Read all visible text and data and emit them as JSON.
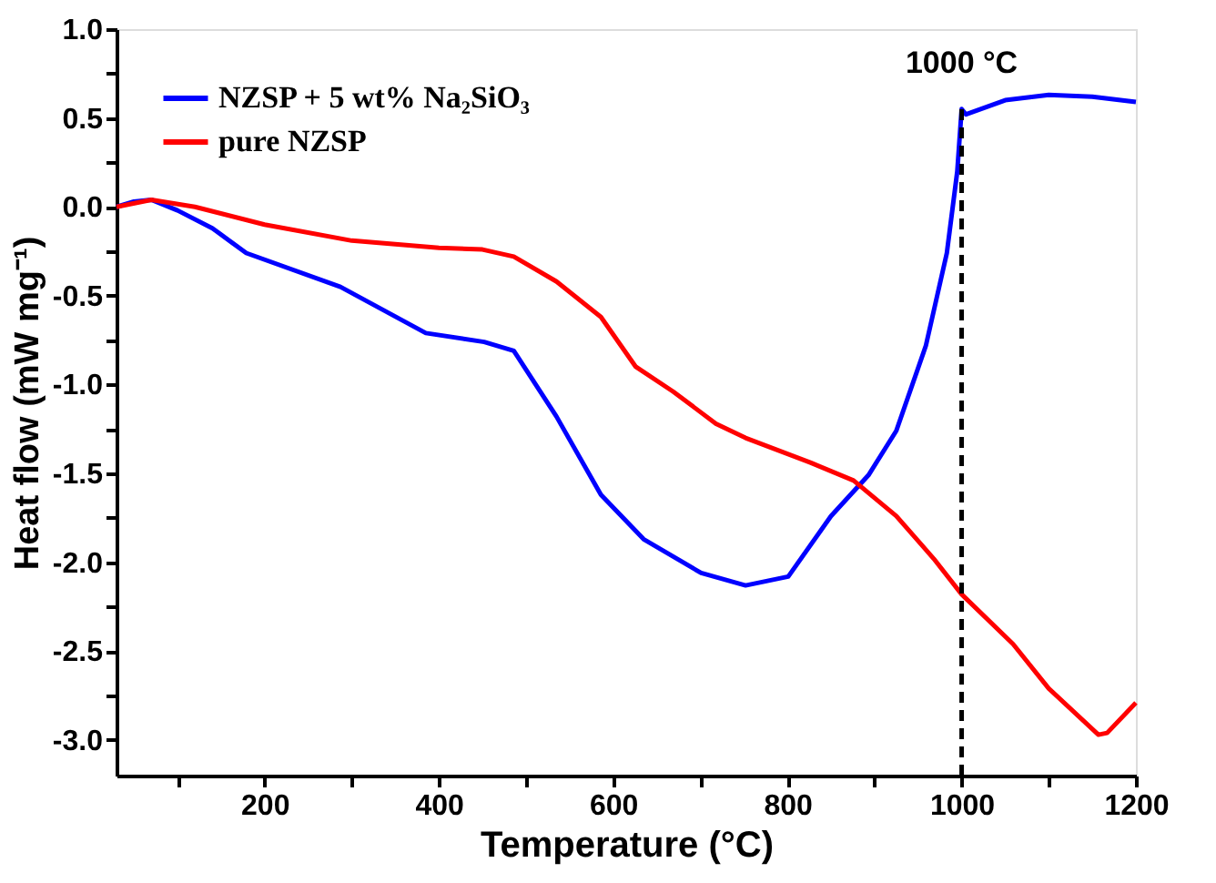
{
  "chart_data": {
    "type": "line",
    "xlabel": "Temperature (°C)",
    "ylabel": "Heat flow (mW mg⁻¹)",
    "xlim": [
      30,
      1200
    ],
    "ylim": [
      -3.2,
      1.0
    ],
    "xticks": [
      {
        "value": 100,
        "label": null
      },
      200,
      {
        "value": 300,
        "label": null
      },
      400,
      {
        "value": 500,
        "label": null
      },
      600,
      {
        "value": 700,
        "label": null
      },
      800,
      {
        "value": 900,
        "label": null
      },
      1000,
      {
        "value": 1100,
        "label": null
      },
      1200
    ],
    "yticks": [
      {
        "value": -3.0,
        "label": "-3.0"
      },
      {
        "value": -2.75,
        "label": null
      },
      {
        "value": -2.5,
        "label": "-2.5"
      },
      {
        "value": -2.25,
        "label": null
      },
      {
        "value": -2.0,
        "label": "-2.0"
      },
      {
        "value": -1.75,
        "label": null
      },
      {
        "value": -1.5,
        "label": "-1.5"
      },
      {
        "value": -1.25,
        "label": null
      },
      {
        "value": -1.0,
        "label": "-1.0"
      },
      {
        "value": -0.75,
        "label": null
      },
      {
        "value": -0.5,
        "label": "-0.5"
      },
      {
        "value": -0.25,
        "label": null
      },
      {
        "value": 0.0,
        "label": "0.0"
      },
      {
        "value": 0.25,
        "label": null
      },
      {
        "value": 0.5,
        "label": "0.5"
      },
      {
        "value": 0.75,
        "label": null
      },
      {
        "value": 1.0,
        "label": "1.0"
      }
    ],
    "grid": false,
    "legend": "top left",
    "line_style": "solid",
    "marker": "none",
    "ref_lines": [
      {
        "axis": "x",
        "value": 1000,
        "label": "1000 °C",
        "color": "#000000",
        "line_style": "dashed"
      }
    ],
    "series": [
      {
        "name": "NZSP + 5 wt% Na₂SiO₃",
        "color": "#0000ff",
        "x": [
          30,
          50,
          70,
          100,
          140,
          179,
          287,
          385,
          452,
          486,
          535,
          586,
          635,
          701,
          752,
          801,
          850,
          893,
          925,
          959,
          983,
          995,
          1000,
          1005,
          1050,
          1100,
          1150,
          1200
        ],
        "values": [
          0.0,
          0.03,
          0.04,
          -0.02,
          -0.12,
          -0.26,
          -0.45,
          -0.71,
          -0.76,
          -0.81,
          -1.18,
          -1.62,
          -1.87,
          -2.06,
          -2.13,
          -2.08,
          -1.74,
          -1.51,
          -1.26,
          -0.78,
          -0.26,
          0.2,
          0.55,
          0.52,
          0.6,
          0.63,
          0.62,
          0.59
        ]
      },
      {
        "name": "pure NZSP",
        "color": "#ff0000",
        "x": [
          30,
          70,
          120,
          200,
          300,
          400,
          450,
          486,
          535,
          586,
          626,
          669,
          718,
          752,
          827,
          876,
          925,
          968,
          1000,
          1059,
          1100,
          1157,
          1167,
          1200
        ],
        "values": [
          0.0,
          0.04,
          0.0,
          -0.1,
          -0.19,
          -0.23,
          -0.24,
          -0.28,
          -0.42,
          -0.62,
          -0.9,
          -1.04,
          -1.22,
          -1.3,
          -1.44,
          -1.54,
          -1.74,
          -1.98,
          -2.18,
          -2.46,
          -2.71,
          -2.97,
          -2.96,
          -2.79
        ]
      }
    ]
  }
}
